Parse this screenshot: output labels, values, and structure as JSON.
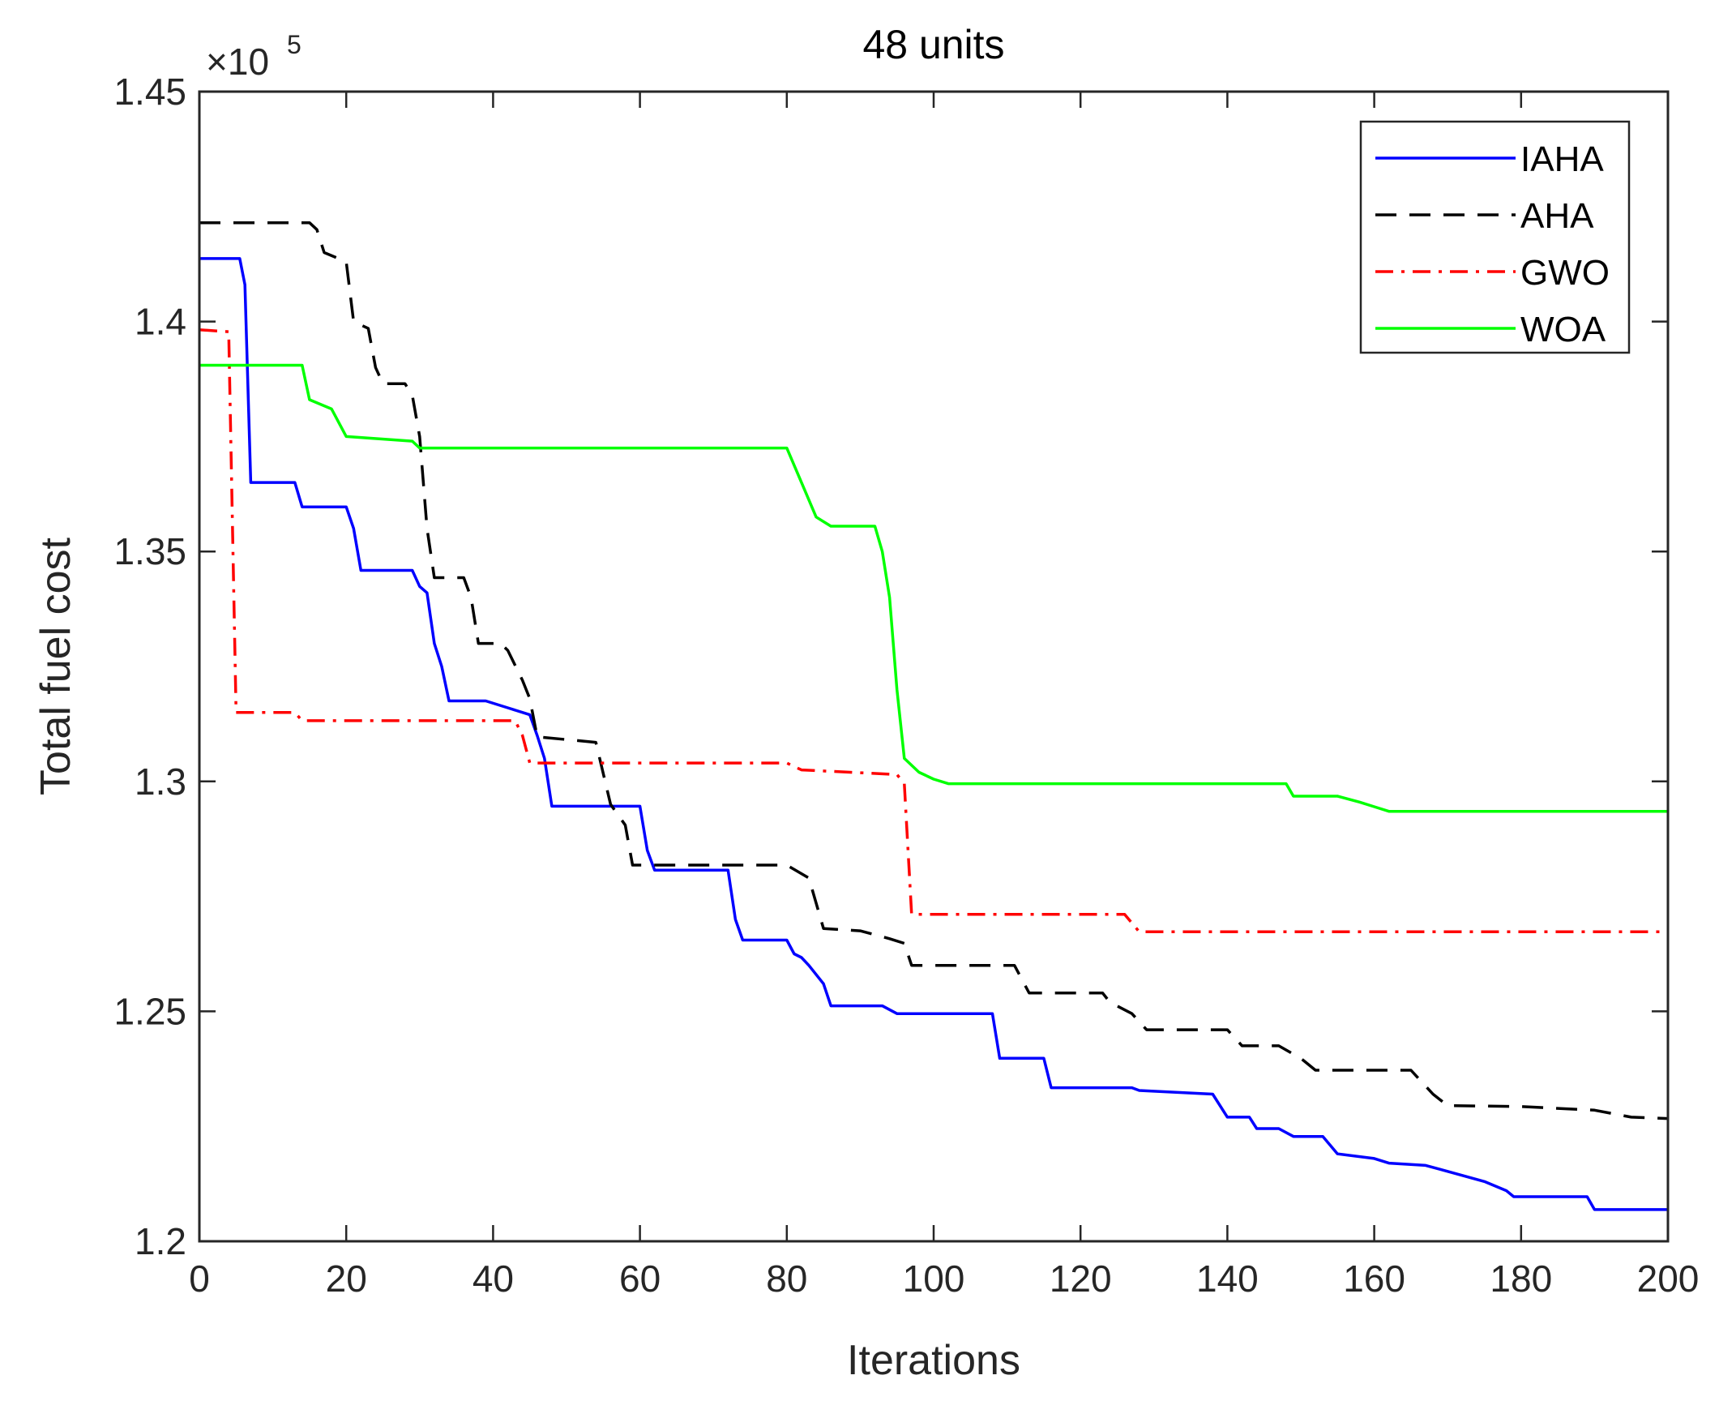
{
  "chart_data": {
    "type": "line",
    "title": "48 units",
    "xlabel": "Iterations",
    "ylabel": "Total fuel cost",
    "y_exponent_base": "×10",
    "y_exponent_power": "5",
    "xlim": [
      0,
      200
    ],
    "ylim": [
      1.2,
      1.45
    ],
    "xticks": [
      0,
      20,
      40,
      60,
      80,
      100,
      120,
      140,
      160,
      180,
      200
    ],
    "yticks": [
      1.2,
      1.25,
      1.3,
      1.35,
      1.4,
      1.45
    ],
    "xtick_labels": [
      "0",
      "20",
      "40",
      "60",
      "80",
      "100",
      "120",
      "140",
      "160",
      "180",
      "200"
    ],
    "ytick_labels": [
      "1.2",
      "1.25",
      "1.3",
      "1.35",
      "1.4",
      "1.45"
    ],
    "legend_position": "top-right",
    "grid": false,
    "series": [
      {
        "name": "IAHA",
        "color": "#0000ff",
        "style": "solid",
        "points": [
          [
            0,
            1.4137
          ],
          [
            5.5,
            1.4137
          ],
          [
            6.2,
            1.408
          ],
          [
            7,
            1.365
          ],
          [
            13,
            1.365
          ],
          [
            14,
            1.3597
          ],
          [
            20,
            1.3597
          ],
          [
            21,
            1.355
          ],
          [
            22,
            1.3459
          ],
          [
            29,
            1.3459
          ],
          [
            30,
            1.3424
          ],
          [
            31,
            1.341
          ],
          [
            32,
            1.33
          ],
          [
            33,
            1.325
          ],
          [
            34,
            1.3175
          ],
          [
            39,
            1.3175
          ],
          [
            42,
            1.316
          ],
          [
            45,
            1.3145
          ],
          [
            46,
            1.31
          ],
          [
            47,
            1.305
          ],
          [
            48,
            1.2946
          ],
          [
            60,
            1.2946
          ],
          [
            61,
            1.285
          ],
          [
            62,
            1.2807
          ],
          [
            72,
            1.2807
          ],
          [
            73,
            1.27
          ],
          [
            74,
            1.2655
          ],
          [
            80,
            1.2655
          ],
          [
            81,
            1.2625
          ],
          [
            82,
            1.2617
          ],
          [
            83,
            1.26
          ],
          [
            85,
            1.256
          ],
          [
            86,
            1.2512
          ],
          [
            93,
            1.2512
          ],
          [
            95,
            1.2495
          ],
          [
            108,
            1.2495
          ],
          [
            109,
            1.2398
          ],
          [
            115,
            1.2398
          ],
          [
            116,
            1.2334
          ],
          [
            127,
            1.2334
          ],
          [
            128,
            1.2328
          ],
          [
            138,
            1.232
          ],
          [
            140,
            1.227
          ],
          [
            143,
            1.227
          ],
          [
            144,
            1.2245
          ],
          [
            147,
            1.2245
          ],
          [
            149,
            1.2228
          ],
          [
            153,
            1.2228
          ],
          [
            155,
            1.219
          ],
          [
            160,
            1.218
          ],
          [
            162,
            1.217
          ],
          [
            167,
            1.2165
          ],
          [
            170,
            1.2152
          ],
          [
            175,
            1.213
          ],
          [
            178,
            1.211
          ],
          [
            179,
            1.2097
          ],
          [
            189,
            1.2097
          ],
          [
            190,
            1.2069
          ],
          [
            200,
            1.2069
          ]
        ]
      },
      {
        "name": "AHA",
        "color": "#000000",
        "style": "dashed",
        "points": [
          [
            0,
            1.4215
          ],
          [
            15,
            1.4215
          ],
          [
            16,
            1.42
          ],
          [
            17,
            1.415
          ],
          [
            20,
            1.413
          ],
          [
            21,
            1.4
          ],
          [
            23,
            1.3985
          ],
          [
            24,
            1.39
          ],
          [
            25,
            1.3865
          ],
          [
            28,
            1.3865
          ],
          [
            29,
            1.384
          ],
          [
            30,
            1.375
          ],
          [
            31,
            1.355
          ],
          [
            32,
            1.3443
          ],
          [
            36,
            1.3443
          ],
          [
            37,
            1.34
          ],
          [
            38,
            1.33
          ],
          [
            41,
            1.33
          ],
          [
            42,
            1.3285
          ],
          [
            44,
            1.322
          ],
          [
            45,
            1.318
          ],
          [
            46,
            1.3097
          ],
          [
            54,
            1.3085
          ],
          [
            56,
            1.295
          ],
          [
            58,
            1.2905
          ],
          [
            59,
            1.2818
          ],
          [
            80,
            1.2818
          ],
          [
            83,
            1.279
          ],
          [
            85,
            1.268
          ],
          [
            90,
            1.2675
          ],
          [
            94,
            1.2658
          ],
          [
            96,
            1.2648
          ],
          [
            97,
            1.26
          ],
          [
            111,
            1.26
          ],
          [
            113,
            1.254
          ],
          [
            123,
            1.254
          ],
          [
            124,
            1.252
          ],
          [
            127,
            1.2495
          ],
          [
            129,
            1.246
          ],
          [
            140,
            1.246
          ],
          [
            142,
            1.2425
          ],
          [
            147,
            1.2425
          ],
          [
            150,
            1.2398
          ],
          [
            152,
            1.2372
          ],
          [
            165,
            1.2372
          ],
          [
            168,
            1.232
          ],
          [
            170,
            1.2295
          ],
          [
            180,
            1.2293
          ],
          [
            190,
            1.2285
          ],
          [
            195,
            1.227
          ],
          [
            200,
            1.2267
          ]
        ]
      },
      {
        "name": "GWO",
        "color": "#ff0000",
        "style": "dashdot",
        "points": [
          [
            0,
            1.3982
          ],
          [
            4,
            1.3978
          ],
          [
            5,
            1.315
          ],
          [
            13,
            1.315
          ],
          [
            14,
            1.3132
          ],
          [
            43,
            1.3132
          ],
          [
            44,
            1.31
          ],
          [
            45,
            1.304
          ],
          [
            80,
            1.304
          ],
          [
            82,
            1.3025
          ],
          [
            95,
            1.3015
          ],
          [
            96,
            1.2995
          ],
          [
            97,
            1.2711
          ],
          [
            126,
            1.2711
          ],
          [
            128,
            1.2673
          ],
          [
            200,
            1.2673
          ]
        ]
      },
      {
        "name": "WOA",
        "color": "#00ff00",
        "style": "solid",
        "points": [
          [
            0,
            1.3905
          ],
          [
            14,
            1.3905
          ],
          [
            15,
            1.383
          ],
          [
            18,
            1.381
          ],
          [
            20,
            1.375
          ],
          [
            29,
            1.374
          ],
          [
            30,
            1.3725
          ],
          [
            80,
            1.3725
          ],
          [
            82,
            1.365
          ],
          [
            84,
            1.3575
          ],
          [
            86,
            1.3555
          ],
          [
            92,
            1.3555
          ],
          [
            93,
            1.35
          ],
          [
            94,
            1.34
          ],
          [
            95,
            1.32
          ],
          [
            96,
            1.305
          ],
          [
            98,
            1.302
          ],
          [
            100,
            1.3005
          ],
          [
            102,
            1.2995
          ],
          [
            148,
            1.2995
          ],
          [
            149,
            1.2968
          ],
          [
            155,
            1.2968
          ],
          [
            158,
            1.2955
          ],
          [
            160,
            1.2945
          ],
          [
            162,
            1.2935
          ],
          [
            200,
            1.2935
          ]
        ]
      }
    ]
  }
}
